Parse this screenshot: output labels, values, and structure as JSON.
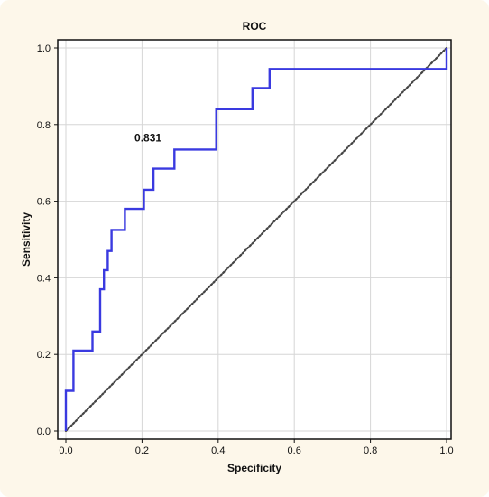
{
  "chart_data": {
    "type": "line",
    "title": "ROC",
    "xlabel": "Specificity",
    "ylabel": "Sensitivity",
    "xlim": [
      0.0,
      1.0
    ],
    "ylim": [
      0.0,
      1.0
    ],
    "x_ticks": [
      "0.0",
      "0.2",
      "0.4",
      "0.6",
      "0.8",
      "1.0"
    ],
    "y_ticks": [
      "0.0",
      "0.2",
      "0.4",
      "0.6",
      "0.8",
      "1.0"
    ],
    "grid": true,
    "annotations": [
      {
        "text": "0.831",
        "x": 0.23,
        "y": 0.732
      }
    ],
    "series": [
      {
        "color": "#3a3ae0",
        "style": "step",
        "x": [
          0.0,
          0.0,
          0.02,
          0.02,
          0.07,
          0.07,
          0.09,
          0.09,
          0.1,
          0.1,
          0.11,
          0.11,
          0.12,
          0.12,
          0.155,
          0.155,
          0.205,
          0.205,
          0.23,
          0.23,
          0.285,
          0.285,
          0.395,
          0.395,
          0.49,
          0.49,
          0.535,
          0.535,
          1.0,
          1.0
        ],
        "y": [
          0.0,
          0.105,
          0.105,
          0.21,
          0.21,
          0.26,
          0.26,
          0.37,
          0.37,
          0.42,
          0.42,
          0.47,
          0.47,
          0.525,
          0.525,
          0.58,
          0.58,
          0.63,
          0.63,
          0.685,
          0.685,
          0.735,
          0.735,
          0.84,
          0.84,
          0.895,
          0.895,
          0.945,
          0.945,
          1.0
        ]
      },
      {
        "color": "#444444",
        "style": "dotted",
        "x": [
          0.0,
          1.0
        ],
        "y": [
          0.0,
          1.0
        ]
      }
    ]
  }
}
